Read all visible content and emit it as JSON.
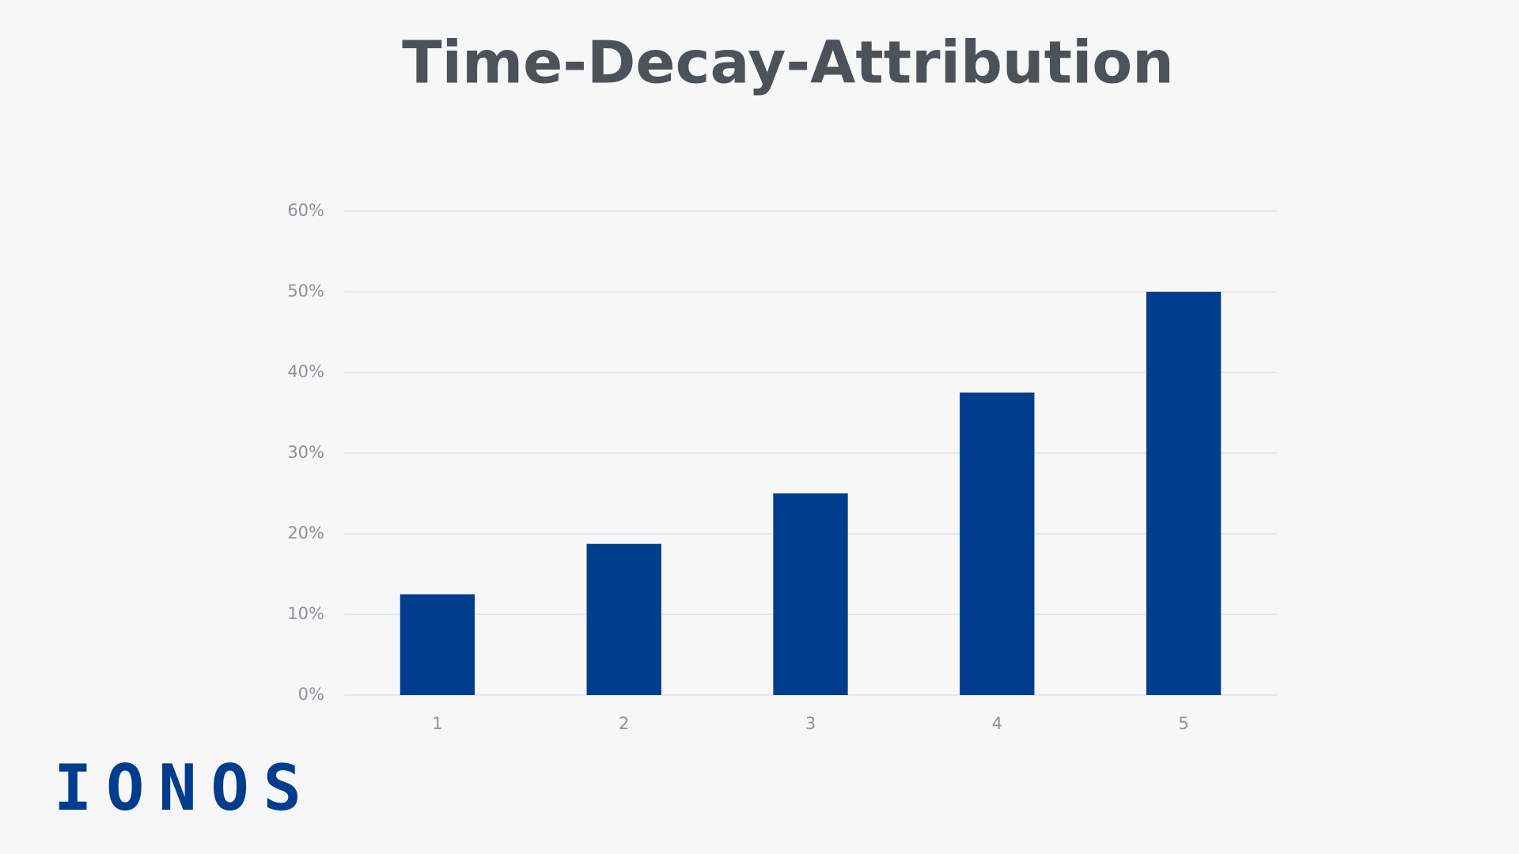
{
  "chart_data": {
    "type": "bar",
    "title": "Time-Decay-Attribution",
    "categories": [
      "1",
      "2",
      "3",
      "4",
      "5"
    ],
    "values": [
      12.5,
      18.75,
      25,
      37.5,
      50
    ],
    "color": "#003d8f",
    "ylim": [
      0,
      60
    ],
    "yticks": [
      {
        "value": 0,
        "label": "0%"
      },
      {
        "value": 10,
        "label": "10%"
      },
      {
        "value": 20,
        "label": "20%"
      },
      {
        "value": 30,
        "label": "30%"
      },
      {
        "value": 40,
        "label": "40%"
      },
      {
        "value": 50,
        "label": "50%"
      },
      {
        "value": 60,
        "label": "60%"
      }
    ],
    "grid": true
  },
  "logo": "IONOS"
}
